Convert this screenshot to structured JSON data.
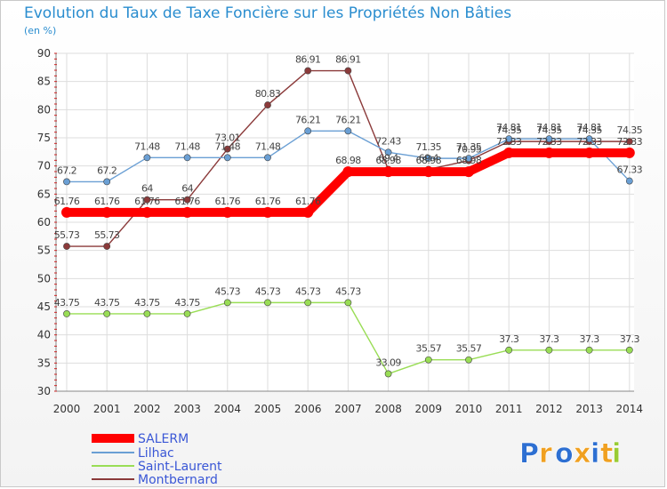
{
  "chart_data": {
    "type": "line",
    "title": "Evolution du Taux de Taxe Foncière sur les Propriétés Non Bâties",
    "subtitle": "(en %)",
    "xlabel": "",
    "ylabel": "",
    "categories": [
      "2000",
      "2001",
      "2002",
      "2003",
      "2004",
      "2005",
      "2006",
      "2007",
      "2008",
      "2009",
      "2010",
      "2011",
      "2012",
      "2013",
      "2014"
    ],
    "ylim": [
      30,
      90
    ],
    "yticks": [
      30,
      35,
      40,
      45,
      50,
      55,
      60,
      65,
      70,
      75,
      80,
      85,
      90
    ],
    "grid": true,
    "legend_position": "bottom-left",
    "series": [
      {
        "name": "SALERM",
        "color": "#ff0000",
        "values": [
          61.76,
          61.76,
          61.76,
          61.76,
          61.76,
          61.76,
          61.76,
          68.98,
          68.98,
          68.98,
          68.98,
          72.33,
          72.33,
          72.33,
          72.33
        ],
        "labels": [
          "61.76",
          "61.76",
          "61.76",
          "61.76",
          "61.76",
          "61.76",
          "61.76",
          "68.98",
          "68.98",
          "68.98",
          "68.98",
          "72.33",
          "72.33",
          "72.33",
          "72.33"
        ]
      },
      {
        "name": "Lilhac",
        "color": "#6a9fd4",
        "values": [
          67.2,
          67.2,
          71.48,
          71.48,
          71.48,
          71.48,
          76.21,
          76.21,
          72.43,
          71.35,
          71.35,
          74.81,
          74.81,
          74.81,
          67.33
        ],
        "labels": [
          "67.2",
          "67.2",
          "71.48",
          "71.48",
          "71.48",
          "71.48",
          "76.21",
          "76.21",
          "72.43",
          "71.35",
          "71.35",
          "74.81",
          "74.81",
          "74.81",
          "67.33"
        ]
      },
      {
        "name": "Saint-Laurent",
        "color": "#99dd55",
        "values": [
          43.75,
          43.75,
          43.75,
          43.75,
          45.73,
          45.73,
          45.73,
          45.73,
          33.09,
          35.57,
          35.57,
          37.3,
          37.3,
          37.3,
          37.3
        ],
        "labels": [
          "43.75",
          "43.75",
          "43.75",
          "43.75",
          "45.73",
          "45.73",
          "45.73",
          "45.73",
          "33.09",
          "35.57",
          "35.57",
          "37.3",
          "37.3",
          "37.3",
          "37.3"
        ]
      },
      {
        "name": "Montbernard",
        "color": "#8b3a3a",
        "values": [
          55.73,
          55.73,
          64,
          64,
          73.01,
          80.83,
          86.91,
          86.91,
          69.4,
          69.4,
          70.95,
          74.35,
          74.35,
          74.35,
          74.35
        ],
        "labels": [
          "55.73",
          "55.73",
          "64",
          "64",
          "73.01",
          "80.83",
          "86.91",
          "86.91",
          "69.4",
          "69.4",
          "70.95",
          "74.35",
          "74.35",
          "74.35",
          "74.35"
        ]
      }
    ]
  },
  "branding": {
    "logo_letters": [
      "P",
      "r",
      "o",
      "x",
      "i",
      "t",
      "i"
    ],
    "logo_colors": [
      "#2d6fd2",
      "#f0a020",
      "#2d6fd2",
      "#f0a020",
      "#2d6fd2",
      "#f0a020",
      "#99cc33"
    ]
  }
}
